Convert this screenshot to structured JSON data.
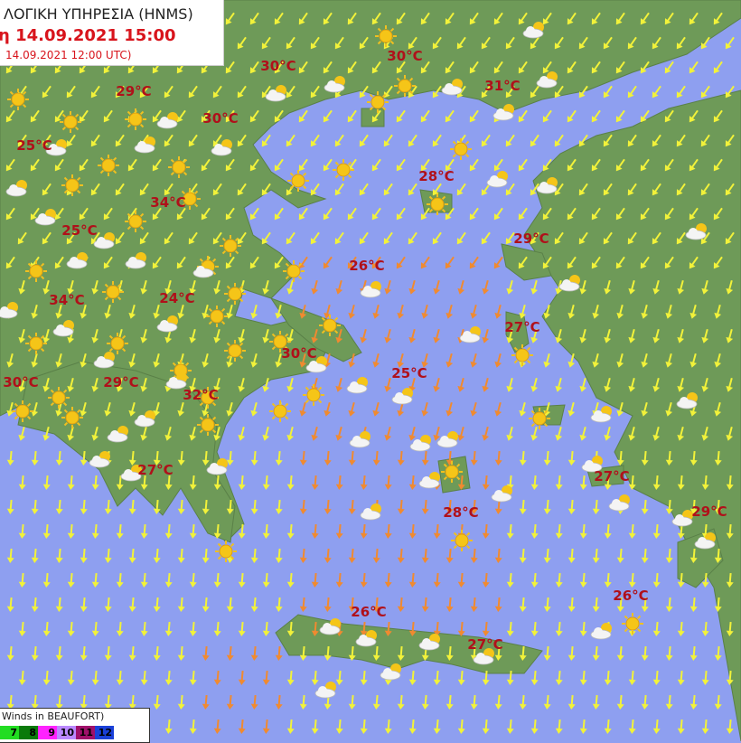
{
  "header": {
    "agency": "ΛΟΓΙΚΗ ΥΠΗΡΕΣΙΑ (HNMS)",
    "valid_time": "η 14.09.2021 15:00",
    "run_time": "14.09.2021 12:00 UTC)"
  },
  "temperatures": [
    "30°C",
    "30°C",
    "31°C",
    "29°C",
    "30°C",
    "25°C",
    "28°C",
    "34°C",
    "25°C",
    "29°C",
    "26°C",
    "34°C",
    "24°C",
    "27°C",
    "30°C",
    "25°C",
    "30°C",
    "29°C",
    "32°C",
    "27°C",
    "27°C",
    "28°C",
    "29°C",
    "26°C",
    "26°C",
    "27°C"
  ],
  "legend": {
    "title": "Winds in BEAUFORT)",
    "scale": [
      {
        "label": "7",
        "color": "#22dd22"
      },
      {
        "label": "8",
        "color": "#0a7a0a"
      },
      {
        "label": "9",
        "color": "#ff22ff"
      },
      {
        "label": "10",
        "color": "#bb88ff"
      },
      {
        "label": "11",
        "color": "#a0106a"
      },
      {
        "label": "12",
        "color": "#1a40d8"
      }
    ]
  },
  "colors": {
    "sea": "#8e9ff0",
    "land": "#6e9a58",
    "wind_light": "#f2f23a",
    "wind_strong": "#f08a30",
    "temperature": "#b0101a"
  }
}
